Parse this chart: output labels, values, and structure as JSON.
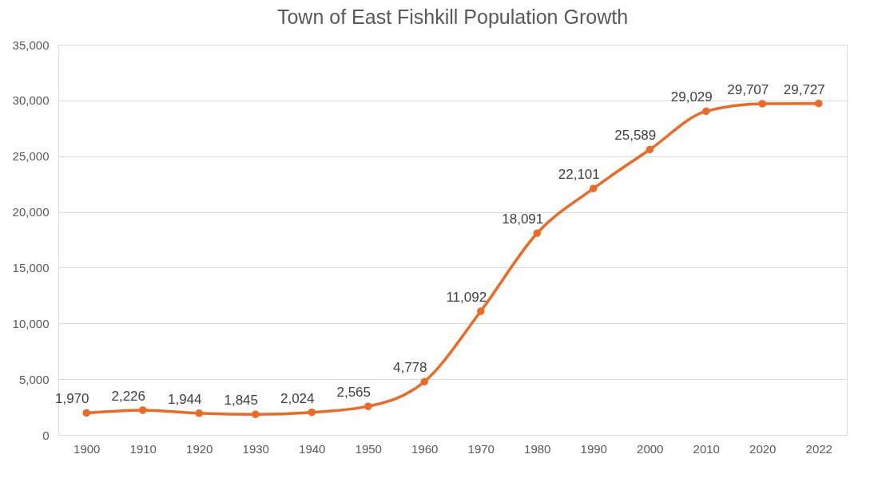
{
  "chart_data": {
    "type": "line",
    "title": "Town of East Fishkill Population Growth",
    "categories": [
      "1900",
      "1910",
      "1920",
      "1930",
      "1940",
      "1950",
      "1960",
      "1970",
      "1980",
      "1990",
      "2000",
      "2010",
      "2020",
      "2022"
    ],
    "series": [
      {
        "color": "#ee6a24",
        "values": [
          1970,
          2226,
          1944,
          1845,
          2024,
          2565,
          4778,
          11092,
          18091,
          22101,
          25589,
          29029,
          29707,
          29727
        ],
        "value_labels": [
          "1,970",
          "2,226",
          "1,944",
          "1,845",
          "2,024",
          "2,565",
          "4,778",
          "11,092",
          "18,091",
          "22,101",
          "25,589",
          "29,029",
          "29,707",
          "29,727"
        ]
      }
    ],
    "ylim": [
      0,
      35000
    ],
    "yticks": [
      0,
      {
        "value": 5000,
        "label": "5,000"
      },
      {
        "value": 10000,
        "label": "10,000"
      },
      {
        "value": 15000,
        "label": "15,000"
      },
      {
        "value": 20000,
        "label": "20,000"
      },
      {
        "value": 25000,
        "label": "25,000"
      },
      {
        "value": 30000,
        "label": "30,000"
      },
      {
        "value": 35000,
        "label": "35,000"
      }
    ],
    "grid": "y",
    "marker": "circle",
    "line_style": "solid"
  }
}
